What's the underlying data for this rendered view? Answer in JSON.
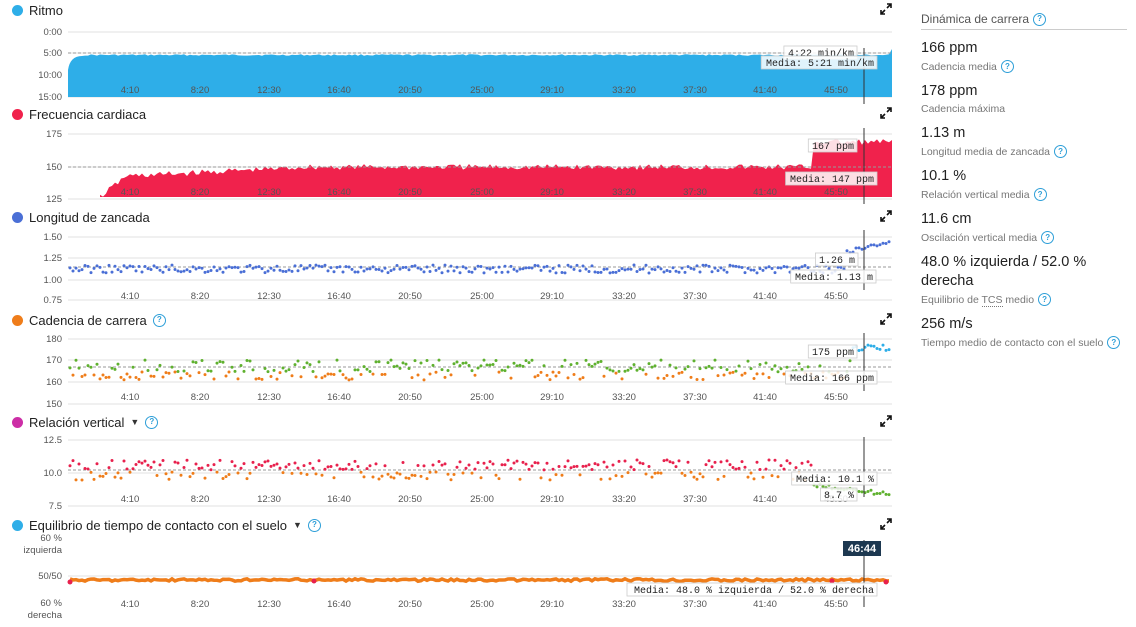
{
  "x_ticks": [
    "4:10",
    "8:20",
    "12:30",
    "16:40",
    "20:50",
    "25:00",
    "29:10",
    "33:20",
    "37:30",
    "41:40",
    "45:50"
  ],
  "cursor_time": "46:44",
  "charts": [
    {
      "key": "pace",
      "title": "Ritmo",
      "dot_color": "#2eaee8",
      "has_help": false,
      "has_caret": false,
      "y_ticks": [
        "0:00",
        "5:00",
        "10:00",
        "15:00"
      ],
      "current_label": "4:22 min/km",
      "avg_label": "Media: 5:21 min/km"
    },
    {
      "key": "hr",
      "title": "Frecuencia cardiaca",
      "dot_color": "#f0224c",
      "has_help": false,
      "has_caret": false,
      "y_ticks": [
        "175",
        "150",
        "125"
      ],
      "current_label": "167 ppm",
      "avg_label": "Media: 147 ppm"
    },
    {
      "key": "stride",
      "title": "Longitud de zancada",
      "dot_color": "#4a6fd6",
      "has_help": false,
      "has_caret": false,
      "y_ticks": [
        "1.50",
        "1.25",
        "1.00",
        "0.75"
      ],
      "current_label": "1.26 m",
      "avg_label": "Media: 1.13 m"
    },
    {
      "key": "cadence",
      "title": "Cadencia de carrera",
      "dot_color": "#ef7d1a",
      "has_help": true,
      "has_caret": false,
      "y_ticks": [
        "180",
        "170",
        "160",
        "150"
      ],
      "current_label": "175 ppm",
      "avg_label": "Media: 166 ppm"
    },
    {
      "key": "vratio",
      "title": "Relación vertical",
      "dot_color": "#cc2ea6",
      "has_help": true,
      "has_caret": true,
      "y_ticks": [
        "12.5",
        "10.0",
        "7.5"
      ],
      "current_label": "8.7 %",
      "avg_label": "Media: 10.1 %"
    },
    {
      "key": "gct",
      "title": "Equilibrio de tiempo de contacto con el suelo",
      "dot_color": "#2eaee8",
      "has_help": true,
      "has_caret": true,
      "y_ticks": [
        "60 %",
        "izquierda",
        "50/50",
        "60 %",
        "derecha"
      ],
      "current_label": "",
      "avg_label": "Media: 48.0 % izquierda / 52.0 % derecha"
    }
  ],
  "chart_data": [
    {
      "type": "area",
      "title": "Ritmo",
      "ylim": [
        "0:00",
        "15:00"
      ],
      "avg": "5:21 min/km",
      "current": "4:22 min/km",
      "color": "#2eaee8"
    },
    {
      "type": "area",
      "title": "Frecuencia cardiaca",
      "ylim": [
        125,
        175
      ],
      "avg": 147,
      "current": 167,
      "color": "#f0224c"
    },
    {
      "type": "scatter",
      "title": "Longitud de zancada",
      "ylim": [
        0.75,
        1.5
      ],
      "avg": 1.13,
      "current": 1.26,
      "color": "#4a6fd6"
    },
    {
      "type": "scatter",
      "title": "Cadencia de carrera",
      "ylim": [
        150,
        180
      ],
      "avg": 166,
      "current": 175,
      "colors": [
        "#ef7d1a",
        "#5fb12f",
        "#2eaee8"
      ]
    },
    {
      "type": "scatter",
      "title": "Relación vertical",
      "ylim": [
        7.5,
        12.5
      ],
      "avg": 10.1,
      "current": 8.7,
      "colors": [
        "#e8214d",
        "#ef7d1a",
        "#5fb12f"
      ]
    },
    {
      "type": "line",
      "title": "Equilibrio de tiempo de contacto con el suelo",
      "avg": "48.0 % izquierda / 52.0 % derecha",
      "color": "#ef7d1a"
    }
  ],
  "sidebar": {
    "title": "Dinámica de carrera",
    "metrics": [
      {
        "value": "166 ppm",
        "label": "Cadencia media"
      },
      {
        "value": "178 ppm",
        "label": "Cadencia máxima"
      },
      {
        "value": "1.13 m",
        "label": "Longitud media de zancada"
      },
      {
        "value": "10.1 %",
        "label": "Relación vertical media"
      },
      {
        "value": "11.6 cm",
        "label": "Oscilación vertical media"
      },
      {
        "value": "48.0 % izquierda / 52.0 % derecha",
        "label_pre": "Equilibrio de ",
        "label_abbr": "TCS",
        "label_post": " medio"
      },
      {
        "value": "256 m/s",
        "label": "Tiempo medio de contacto con el suelo"
      }
    ]
  }
}
